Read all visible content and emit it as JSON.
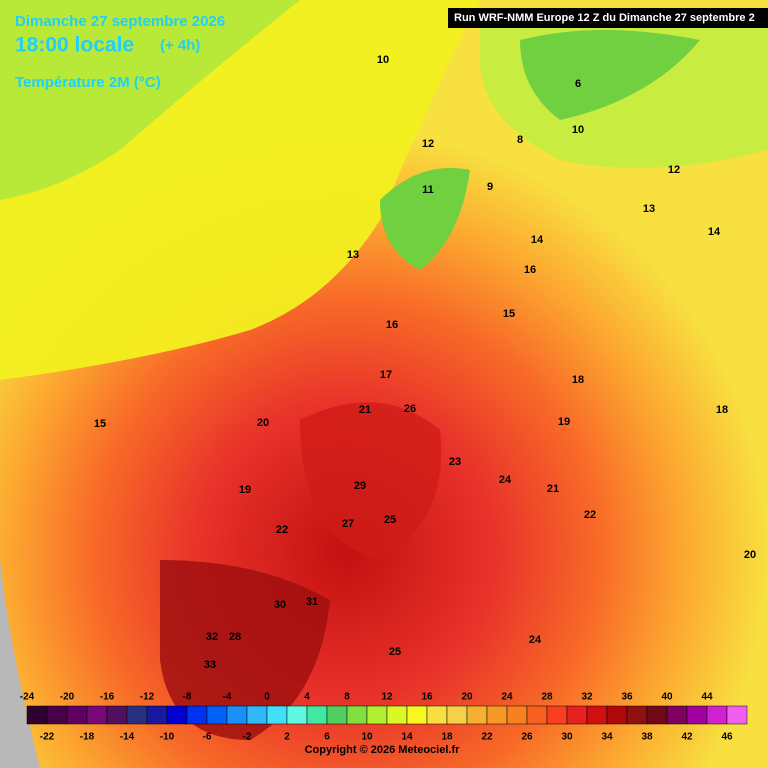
{
  "header": {
    "date": "Dimanche 27 septembre 2026",
    "time": "18:00 locale",
    "offset": "(+ 4h)",
    "variable": "Température 2M (°C)",
    "run": "Run WRF-NMM Europe 12 Z du Dimanche 27 septembre 2"
  },
  "colorbar": {
    "top_labels": [
      "-24",
      "-20",
      "-16",
      "-12",
      "-8",
      "-4",
      "0",
      "4",
      "8",
      "12",
      "16",
      "20",
      "24",
      "28",
      "32",
      "36",
      "40",
      "44"
    ],
    "bottom_labels": [
      "-22",
      "-18",
      "-14",
      "-10",
      "-6",
      "-2",
      "2",
      "6",
      "10",
      "14",
      "18",
      "22",
      "26",
      "30",
      "34",
      "38",
      "42",
      "46"
    ]
  },
  "map_labels": [
    "10",
    "12",
    "13",
    "14",
    "15",
    "16",
    "17",
    "18",
    "19",
    "20",
    "21",
    "22",
    "23",
    "24",
    "25",
    "26",
    "27",
    "28",
    "29",
    "30",
    "31",
    "32",
    "33",
    "12",
    "13",
    "14",
    "15",
    "16",
    "18",
    "19",
    "20",
    "21",
    "22",
    "24",
    "25",
    "9",
    "10",
    "8",
    "6",
    "11"
  ],
  "copyright": "Copyright © 2026 Meteociel.fr"
}
